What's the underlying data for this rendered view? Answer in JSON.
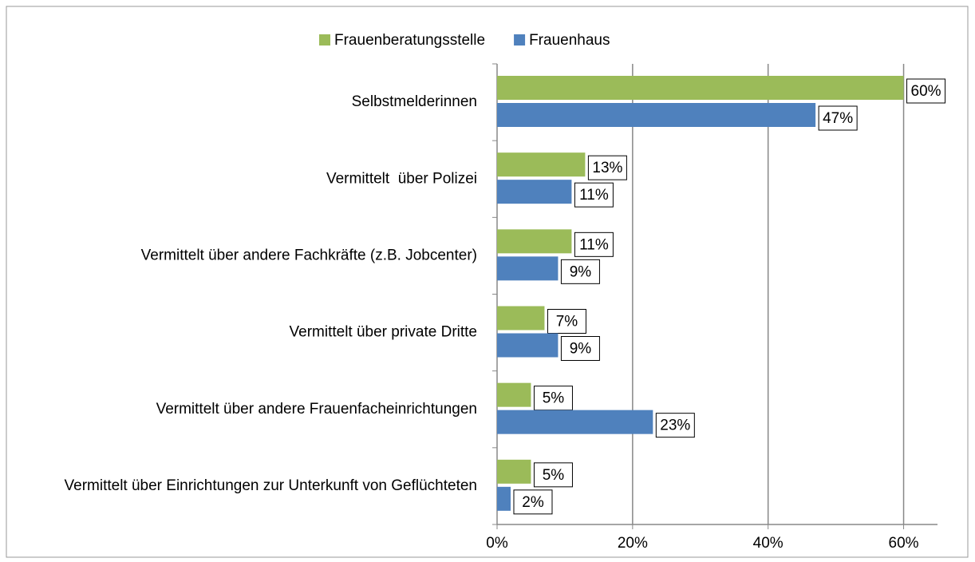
{
  "chart_data": {
    "type": "bar",
    "orientation": "horizontal",
    "categories": [
      "Selbstmelderinnen",
      "Vermittelt  über Polizei",
      "Vermittelt über andere Fachkräfte (z.B. Jobcenter)",
      "Vermittelt über private Dritte",
      "Vermittelt über andere Frauenfacheinrichtungen",
      "Vermittelt über Einrichtungen zur Unterkunft von Geflüchteten"
    ],
    "series": [
      {
        "name": "Frauenberatungsstelle",
        "color": "#9bbb59",
        "values": [
          60,
          13,
          11,
          7,
          5,
          5
        ],
        "value_labels": [
          "60%",
          "13%",
          "11%",
          "7%",
          "5%",
          "5%"
        ]
      },
      {
        "name": "Frauenhaus",
        "color": "#4f81bd",
        "values": [
          47,
          11,
          9,
          9,
          23,
          2
        ],
        "value_labels": [
          "47%",
          "11%",
          "9%",
          "9%",
          "23%",
          "2%"
        ]
      }
    ],
    "xlim": [
      0,
      65
    ],
    "xticks": [
      {
        "value": 0,
        "label": "0%"
      },
      {
        "value": 20,
        "label": "20%"
      },
      {
        "value": 40,
        "label": "40%"
      },
      {
        "value": 60,
        "label": "60%"
      }
    ],
    "grid": true,
    "legend": "top"
  }
}
